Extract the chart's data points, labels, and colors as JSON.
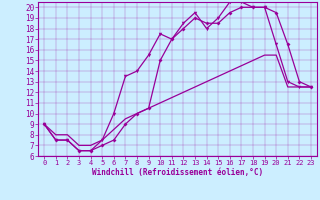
{
  "xlabel": "Windchill (Refroidissement éolien,°C)",
  "bg_color": "#cceeff",
  "line_color": "#990099",
  "xlim": [
    -0.5,
    23.5
  ],
  "ylim": [
    6,
    20.5
  ],
  "xticks": [
    0,
    1,
    2,
    3,
    4,
    5,
    6,
    7,
    8,
    9,
    10,
    11,
    12,
    13,
    14,
    15,
    16,
    17,
    18,
    19,
    20,
    21,
    22,
    23
  ],
  "yticks": [
    6,
    7,
    8,
    9,
    10,
    11,
    12,
    13,
    14,
    15,
    16,
    17,
    18,
    19,
    20
  ],
  "line1_x": [
    0,
    1,
    2,
    3,
    4,
    5,
    6,
    7,
    8,
    9,
    10,
    11,
    12,
    13,
    14,
    15,
    16,
    17,
    18,
    19,
    20,
    21,
    22,
    23
  ],
  "line1_y": [
    9,
    8,
    8,
    7,
    7,
    7.5,
    8.5,
    9.5,
    10,
    10.5,
    11,
    11.5,
    12,
    12.5,
    13,
    13.5,
    14,
    14.5,
    15,
    15.5,
    15.5,
    12.5,
    12.5,
    12.5
  ],
  "line2_x": [
    0,
    1,
    2,
    3,
    4,
    5,
    6,
    7,
    8,
    9,
    10,
    11,
    12,
    13,
    14,
    15,
    16,
    17,
    18,
    19,
    20,
    21,
    22,
    23
  ],
  "line2_y": [
    9,
    7.5,
    7.5,
    6.5,
    6.5,
    7,
    7.5,
    9,
    10,
    10.5,
    15,
    17,
    18,
    19,
    18.5,
    18.5,
    19.5,
    20,
    20,
    20,
    19.5,
    16.5,
    13,
    12.5
  ],
  "line3_x": [
    0,
    1,
    2,
    3,
    4,
    5,
    6,
    7,
    8,
    9,
    10,
    11,
    12,
    13,
    14,
    15,
    16,
    17,
    18,
    19,
    20,
    21,
    22,
    23
  ],
  "line3_y": [
    9,
    7.5,
    7.5,
    6.5,
    6.5,
    7.5,
    10,
    13.5,
    14,
    15.5,
    17.5,
    17,
    18.5,
    19.5,
    18,
    19,
    20.5,
    20.5,
    20,
    20,
    16.5,
    13,
    12.5,
    12.5
  ]
}
